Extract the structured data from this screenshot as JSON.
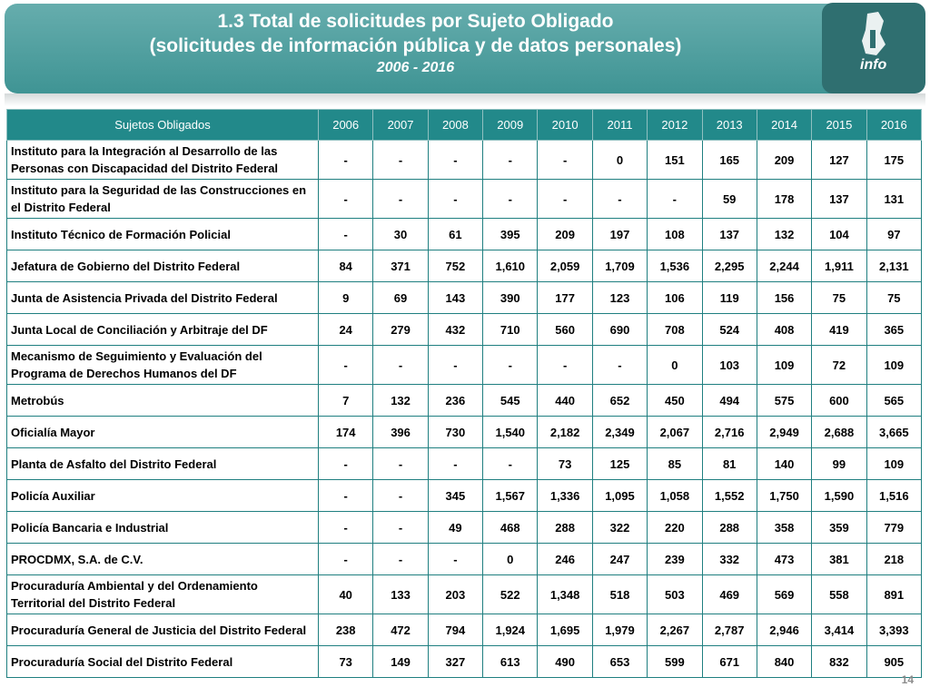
{
  "header": {
    "title": [
      "1.3 Total de solicitudes por Sujeto Obligado",
      "(solicitudes de información pública y de datos personales)"
    ],
    "subtitle": "2006 - 2016",
    "logo": "info"
  },
  "table": {
    "columns": [
      "Sujetos Obligados",
      "2006",
      "2007",
      "2008",
      "2009",
      "2010",
      "2011",
      "2012",
      "2013",
      "2014",
      "2015",
      "2016"
    ],
    "rows": [
      [
        "Instituto para la Integración al Desarrollo de las Personas con Discapacidad del Distrito Federal",
        "-",
        "-",
        "-",
        "-",
        "-",
        "0",
        "151",
        "165",
        "209",
        "127",
        "175"
      ],
      [
        "Instituto para la Seguridad de las Construcciones en el Distrito Federal",
        "-",
        "-",
        "-",
        "-",
        "-",
        "-",
        "-",
        "59",
        "178",
        "137",
        "131"
      ],
      [
        "Instituto Técnico de Formación Policial",
        "-",
        "30",
        "61",
        "395",
        "209",
        "197",
        "108",
        "137",
        "132",
        "104",
        "97"
      ],
      [
        "Jefatura de Gobierno del Distrito Federal",
        "84",
        "371",
        "752",
        "1,610",
        "2,059",
        "1,709",
        "1,536",
        "2,295",
        "2,244",
        "1,911",
        "2,131"
      ],
      [
        "Junta de Asistencia Privada del Distrito Federal",
        "9",
        "69",
        "143",
        "390",
        "177",
        "123",
        "106",
        "119",
        "156",
        "75",
        "75"
      ],
      [
        "Junta Local de Conciliación y Arbitraje del DF",
        "24",
        "279",
        "432",
        "710",
        "560",
        "690",
        "708",
        "524",
        "408",
        "419",
        "365"
      ],
      [
        "Mecanismo de Seguimiento y Evaluación del Programa de Derechos Humanos del DF",
        "-",
        "-",
        "-",
        "-",
        "-",
        "-",
        "0",
        "103",
        "109",
        "72",
        "109"
      ],
      [
        "Metrobús",
        "7",
        "132",
        "236",
        "545",
        "440",
        "652",
        "450",
        "494",
        "575",
        "600",
        "565"
      ],
      [
        "Oficialía Mayor",
        "174",
        "396",
        "730",
        "1,540",
        "2,182",
        "2,349",
        "2,067",
        "2,716",
        "2,949",
        "2,688",
        "3,665"
      ],
      [
        "Planta de Asfalto del Distrito Federal",
        "-",
        "-",
        "-",
        "-",
        "73",
        "125",
        "85",
        "81",
        "140",
        "99",
        "109"
      ],
      [
        "Policía Auxiliar",
        "-",
        "-",
        "345",
        "1,567",
        "1,336",
        "1,095",
        "1,058",
        "1,552",
        "1,750",
        "1,590",
        "1,516"
      ],
      [
        "Policía Bancaria e Industrial",
        "-",
        "-",
        "49",
        "468",
        "288",
        "322",
        "220",
        "288",
        "358",
        "359",
        "779"
      ],
      [
        "PROCDMX, S.A. de C.V.",
        "-",
        "-",
        "-",
        "0",
        "246",
        "247",
        "239",
        "332",
        "473",
        "381",
        "218"
      ],
      [
        "Procuraduría Ambiental y del Ordenamiento Territorial del Distrito Federal",
        "40",
        "133",
        "203",
        "522",
        "1,348",
        "518",
        "503",
        "469",
        "569",
        "558",
        "891"
      ],
      [
        "Procuraduría General de Justicia del Distrito Federal",
        "238",
        "472",
        "794",
        "1,924",
        "1,695",
        "1,979",
        "2,267",
        "2,787",
        "2,946",
        "3,414",
        "3,393"
      ],
      [
        "Procuraduría Social del Distrito Federal",
        "73",
        "149",
        "327",
        "613",
        "490",
        "653",
        "599",
        "671",
        "840",
        "832",
        "905"
      ]
    ]
  },
  "page_number": "14"
}
